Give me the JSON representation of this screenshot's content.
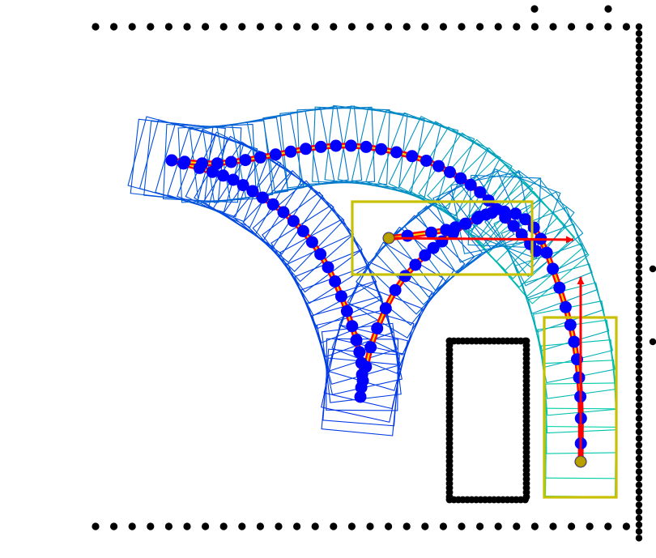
{
  "scene": {
    "colors": {
      "obstacle": "#000000",
      "boundary": "#000000",
      "path_outline": "#ff0000",
      "path_core": "#ffd400",
      "waypoint": "#0000ff",
      "pose_marker": "#b8a000",
      "arrow": "#ff0000",
      "box": "#c8c000",
      "footprint_start": "#0000ff",
      "footprint_end": "#00e0a0"
    },
    "icons": [
      "boundary-dot",
      "obstacle-dot",
      "waypoint-dot",
      "pose-marker",
      "heading-arrow",
      "pose-box",
      "footprint-square"
    ]
  }
}
